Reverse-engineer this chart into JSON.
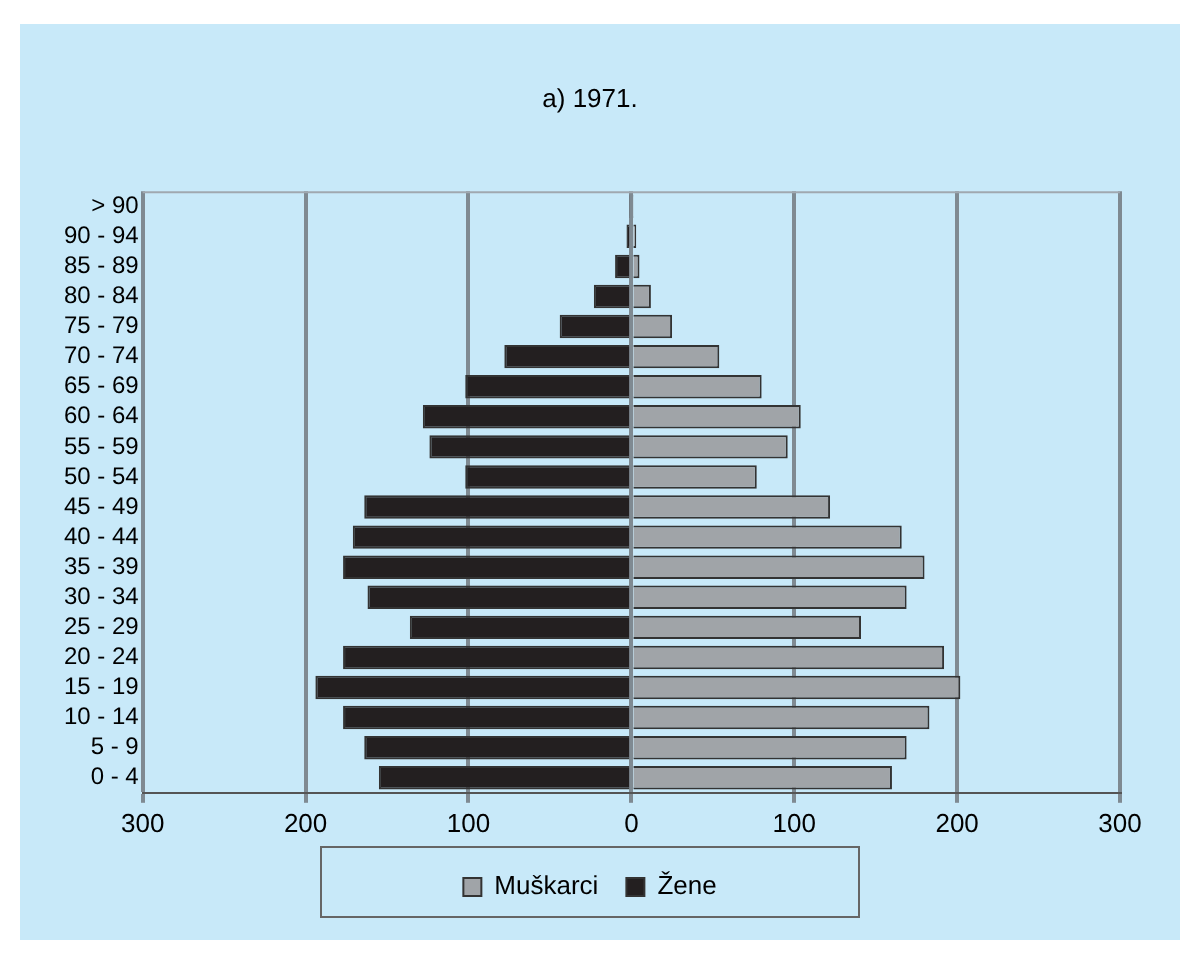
{
  "chart_data": {
    "type": "bar",
    "title": "a) 1971.",
    "orientation": "horizontal",
    "stacked": true,
    "categories": [
      "> 90",
      "90 - 94",
      "85 - 89",
      "80 - 84",
      "75 - 79",
      "70 - 74",
      "65 - 69",
      "60 - 64",
      "55 - 59",
      "50 - 54",
      "45 - 49",
      "40 - 44",
      "35 - 39",
      "30 - 34",
      "25 - 29",
      "20 - 24",
      "15 - 19",
      "10 - 14",
      "5 - 9",
      "0 - 4"
    ],
    "series": [
      {
        "name": "Muškarci",
        "color": "#a0a4a8",
        "values": [
          1,
          3,
          5,
          12,
          25,
          54,
          80,
          104,
          96,
          77,
          122,
          166,
          180,
          169,
          141,
          192,
          202,
          183,
          169,
          160
        ]
      },
      {
        "name": "Žene",
        "color": "#231f20",
        "values": [
          -1,
          -3,
          -10,
          -23,
          -44,
          -78,
          -102,
          -128,
          -124,
          -102,
          -164,
          -171,
          -177,
          -162,
          -136,
          -177,
          -194,
          -177,
          -164,
          -155
        ]
      }
    ],
    "xlim": [
      -300,
      300
    ],
    "xticks": [
      {
        "value": -300,
        "label": "300"
      },
      {
        "value": -200,
        "label": "200"
      },
      {
        "value": -100,
        "label": "100"
      },
      0,
      100,
      200,
      300
    ],
    "grid": "x",
    "legend": "bottom"
  }
}
